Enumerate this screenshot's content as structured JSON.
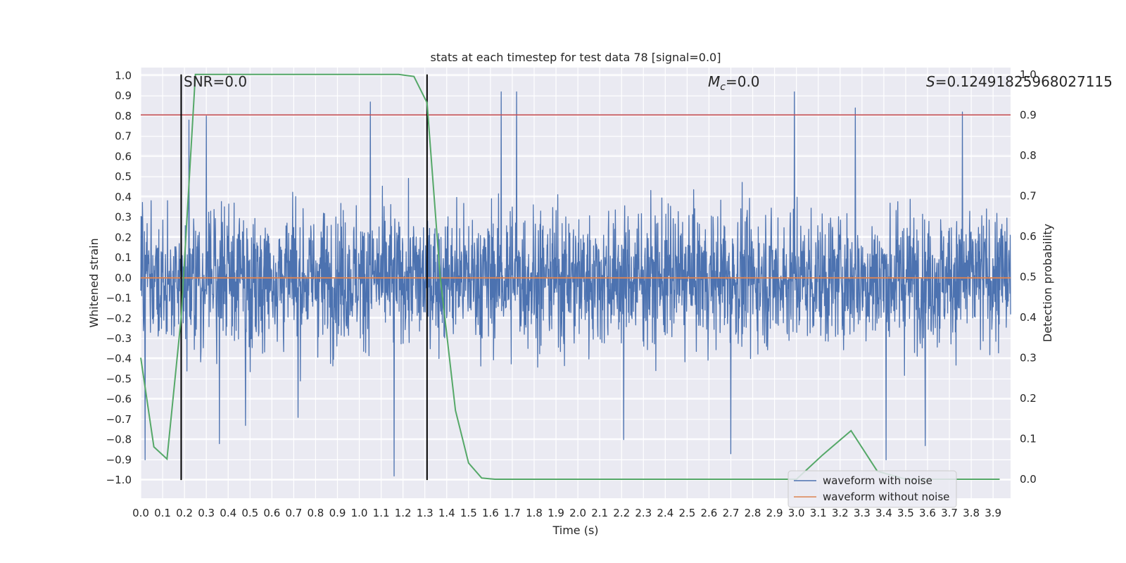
{
  "chart_data": {
    "type": "line",
    "title": "stats at each timestep for test data 78 [signal=0.0]",
    "xlabel": "Time (s)",
    "ylabel": "Whitened strain",
    "y2label": "Detection probability",
    "xlim": [
      0.0,
      3.98
    ],
    "ylim": [
      -1.09,
      1.04
    ],
    "y2lim": [
      -0.047,
      1.017
    ],
    "x_ticks": [
      "0.0",
      "0.1",
      "0.2",
      "0.3",
      "0.4",
      "0.5",
      "0.6",
      "0.7",
      "0.8",
      "0.9",
      "1.0",
      "1.1",
      "1.2",
      "1.3",
      "1.4",
      "1.5",
      "1.6",
      "1.7",
      "1.8",
      "1.9",
      "2.0",
      "2.1",
      "2.2",
      "2.3",
      "2.4",
      "2.5",
      "2.6",
      "2.7",
      "2.8",
      "2.9",
      "3.0",
      "3.1",
      "3.2",
      "3.3",
      "3.4",
      "3.5",
      "3.6",
      "3.7",
      "3.8",
      "3.9"
    ],
    "y_ticks": [
      "1.0",
      "0.9",
      "0.8",
      "0.7",
      "0.6",
      "0.5",
      "0.4",
      "0.3",
      "0.2",
      "0.1",
      "0.0",
      "−0.1",
      "−0.2",
      "−0.3",
      "−0.4",
      "−0.5",
      "−0.6",
      "−0.7",
      "−0.8",
      "−0.9",
      "−1.0"
    ],
    "y2_ticks": [
      "1.0",
      "0.9",
      "0.8",
      "0.7",
      "0.6",
      "0.5",
      "0.4",
      "0.3",
      "0.2",
      "0.1",
      "0.0"
    ],
    "annotations": {
      "snr": "SNR=0.0",
      "mc_symbol": "M",
      "mc_sub": "c",
      "mc_value": "=0.0",
      "s_symbol": "S",
      "s_value": "=0.12491825968027115"
    },
    "threshold": 0.9,
    "vlines": [
      0.185,
      1.31
    ],
    "noise_spikes": [
      {
        "x": 0.02,
        "y": -0.9
      },
      {
        "x": 0.22,
        "y": 0.78
      },
      {
        "x": 0.3,
        "y": 0.8
      },
      {
        "x": 0.36,
        "y": -0.82
      },
      {
        "x": 0.48,
        "y": -0.73
      },
      {
        "x": 0.72,
        "y": -0.69
      },
      {
        "x": 1.05,
        "y": 0.87
      },
      {
        "x": 1.16,
        "y": -1.0
      },
      {
        "x": 1.65,
        "y": 0.94
      },
      {
        "x": 1.72,
        "y": 0.93
      },
      {
        "x": 2.21,
        "y": -0.8
      },
      {
        "x": 2.7,
        "y": -0.87
      },
      {
        "x": 2.99,
        "y": 0.92
      },
      {
        "x": 3.27,
        "y": 0.84
      },
      {
        "x": 3.41,
        "y": -0.9
      },
      {
        "x": 3.59,
        "y": -0.83
      },
      {
        "x": 3.76,
        "y": 0.82
      }
    ],
    "series": [
      {
        "name": "waveform with noise",
        "color": "#4c72b0",
        "kind": "noise",
        "amplitude": 0.42
      },
      {
        "name": "waveform without noise",
        "color": "#dd8452",
        "kind": "flat",
        "value": 0.0
      },
      {
        "name": "detection probability",
        "color": "#55a868",
        "axis": "right",
        "x": [
          0.0,
          0.06,
          0.12,
          0.185,
          0.25,
          0.31,
          0.62,
          0.94,
          1.18,
          1.25,
          1.31,
          1.37,
          1.44,
          1.5,
          1.56,
          1.62,
          3.0,
          3.12,
          3.25,
          3.37,
          3.5,
          3.93
        ],
        "y": [
          0.3,
          0.08,
          0.05,
          0.4,
          1.0,
          1.0,
          1.0,
          1.0,
          1.0,
          0.995,
          0.93,
          0.5,
          0.17,
          0.04,
          0.003,
          0.0,
          0.0,
          0.06,
          0.12,
          0.02,
          0.0,
          0.0
        ]
      }
    ],
    "legend": {
      "location": "lower-right",
      "entries": [
        {
          "label": "waveform with noise",
          "color": "#4c72b0"
        },
        {
          "label": "waveform without noise",
          "color": "#dd8452"
        }
      ]
    },
    "colors": {
      "background": "#eaeaf2",
      "grid": "#ffffff",
      "threshold": "#c44e52",
      "vline": "#000000"
    }
  }
}
